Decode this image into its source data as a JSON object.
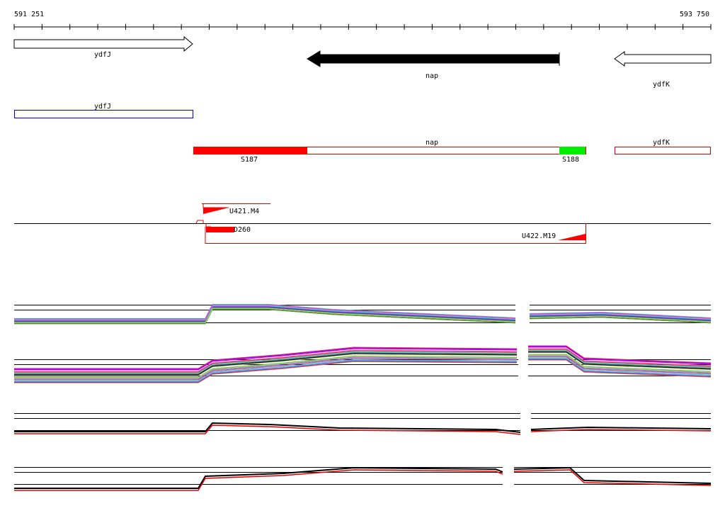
{
  "ruler": {
    "start": "591 251",
    "end": "593 750"
  },
  "genes": [
    {
      "label": "ydfJ"
    },
    {
      "label": "nap"
    },
    {
      "label": "ydfK"
    }
  ],
  "annotations": [
    {
      "label": "ydfJ"
    },
    {
      "label": "nap"
    },
    {
      "label": "ydfK"
    }
  ],
  "segments": [
    {
      "label": "S187"
    },
    {
      "label": "S188"
    }
  ],
  "features": [
    {
      "label": "U421.M4"
    },
    {
      "label": "D260"
    },
    {
      "label": "U422.M19"
    }
  ]
}
